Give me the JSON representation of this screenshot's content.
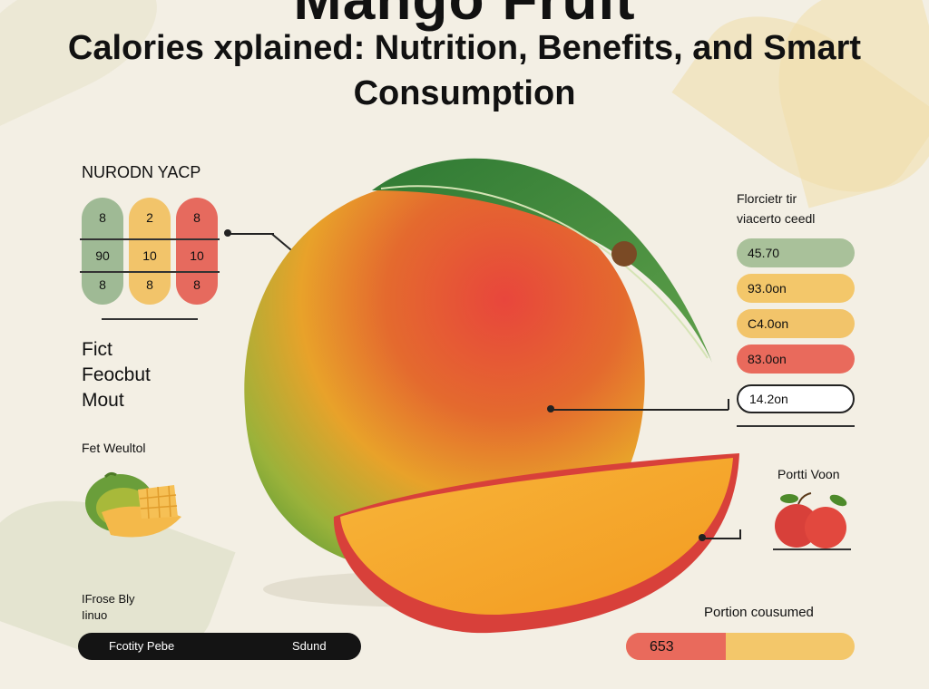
{
  "header": {
    "title_top_partial": "Mango Fruit",
    "title": "Calories xplained: Nutrition, Benefits, and Smart Consumption"
  },
  "left_panel": {
    "section_label": "NURODN YACP",
    "pill_columns": [
      {
        "color": "#9fba95",
        "values": [
          "8",
          "90",
          "8"
        ]
      },
      {
        "color": "#f2c46a",
        "values": [
          "2",
          "10",
          "8"
        ]
      },
      {
        "color": "#e66a5e",
        "values": [
          "8",
          "10",
          "8"
        ]
      }
    ],
    "fact_label": [
      "Fict",
      "Feocbut",
      "Mout"
    ],
    "fet_label": "Fet Weultol",
    "bottom_label": [
      "IFrose Bly",
      "Iinuo"
    ],
    "bottom_bar_left": "Fcotity Pebe",
    "bottom_bar_right": "Sdund"
  },
  "right_panel": {
    "heading": [
      "Florcietr tir",
      "viacerto ceedl"
    ],
    "bars": [
      {
        "label": "45.70",
        "color": "#a9c19a"
      },
      {
        "label": "93.0on",
        "color": "#f3c76a"
      },
      {
        "label": "C4.0on",
        "color": "#f2c46a"
      },
      {
        "label": "83.0on",
        "color": "#e96a5c"
      },
      {
        "label": "14.2on",
        "color": "#ffffff"
      }
    ],
    "portion_label": "Portti Voon",
    "consumed_label": "Portion cousumed",
    "consumed_value": "653"
  },
  "colors": {
    "background": "#f3efe4",
    "green": "#a9c19a",
    "yellow": "#f3c76a",
    "red": "#e96a5c"
  }
}
